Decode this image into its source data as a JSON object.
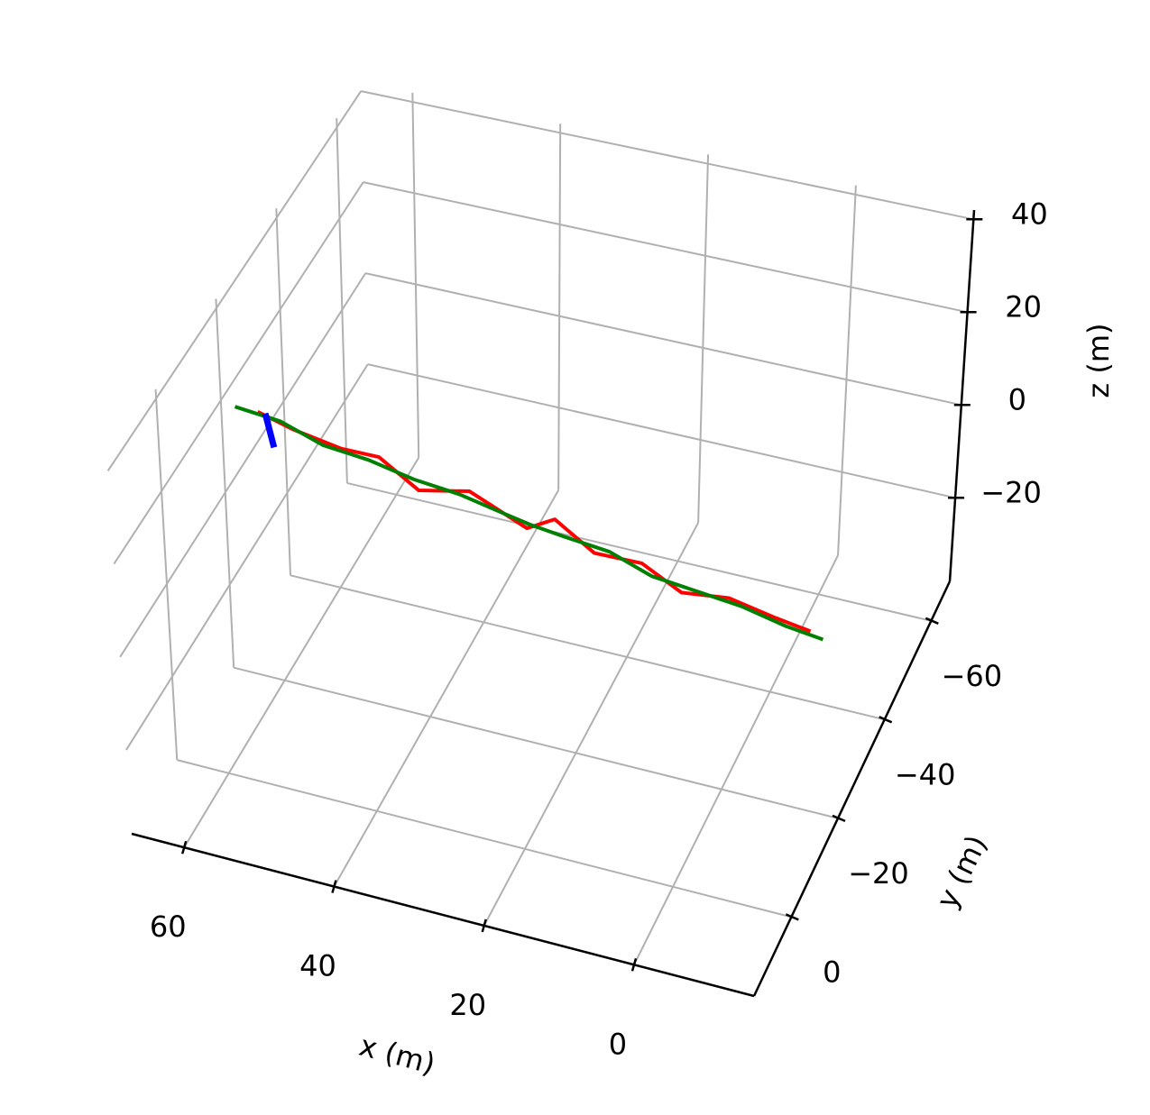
{
  "chart_data": {
    "type": "line3d",
    "xlabel": "x (m)",
    "ylabel": "y (m)",
    "zlabel": "z (m)",
    "xlim": [
      -16,
      67
    ],
    "ylim": [
      -68,
      16
    ],
    "zlim": [
      -38,
      42
    ],
    "xticks": [
      0,
      20,
      40,
      60
    ],
    "yticks": [
      {
        "value": -60,
        "label": "−60"
      },
      {
        "value": -40,
        "label": "−40"
      },
      {
        "value": -20,
        "label": "−20"
      },
      0
    ],
    "zticks": [
      {
        "value": -20,
        "label": "−20"
      },
      0,
      20,
      40
    ],
    "grid": true,
    "series": [
      {
        "color": "#ff0000",
        "x": [
          63,
          58,
          52,
          47,
          41,
          35,
          30,
          27,
          24,
          18,
          12,
          6,
          0,
          -6,
          -11
        ],
        "y": [
          -22,
          -21,
          -22,
          -22,
          -20,
          -22,
          -21,
          -21,
          -23,
          -21,
          -22,
          -20,
          -21,
          -22,
          -21
        ],
        "z": [
          17,
          16,
          13,
          13,
          10,
          10,
          8,
          6,
          7,
          4,
          3,
          1,
          1,
          -2,
          -2
        ]
      },
      {
        "color": "#008000",
        "x": [
          66,
          60,
          54,
          48,
          42,
          36,
          30,
          26,
          22,
          16,
          10,
          4,
          -2,
          -8,
          -13
        ],
        "y": [
          -22,
          -22,
          -21,
          -21,
          -21,
          -21,
          -21,
          -20,
          -21,
          -21,
          -20,
          -20,
          -20,
          -20,
          -20
        ],
        "z": [
          17,
          16,
          14,
          13,
          11,
          10,
          8,
          8,
          6,
          5,
          3,
          2,
          1,
          -1,
          -2
        ]
      },
      {
        "color": "#0000ff",
        "x": [
          62,
          61
        ],
        "y": [
          -22,
          -22
        ],
        "z": [
          17,
          10
        ]
      }
    ]
  }
}
